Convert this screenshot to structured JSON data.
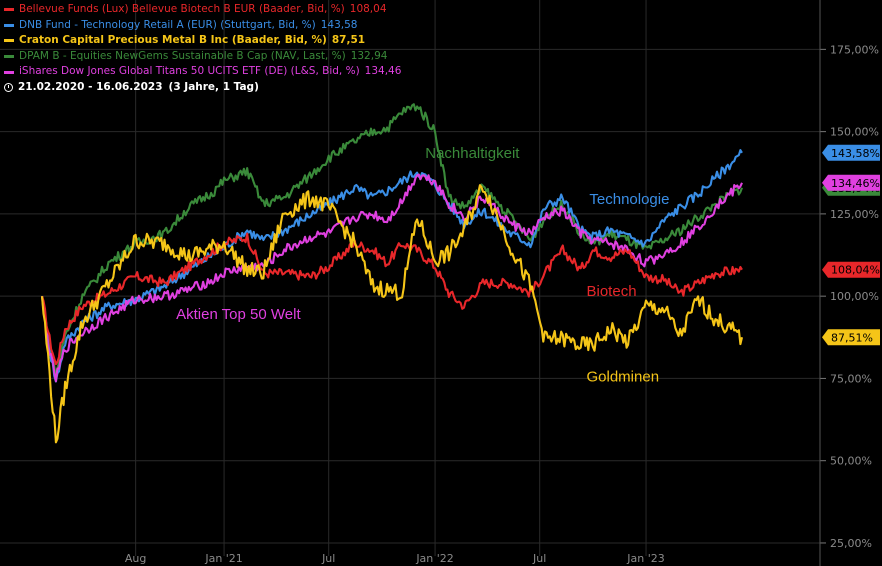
{
  "legend": [
    {
      "label": "Bellevue Funds (Lux) Bellevue Biotech B EUR (Baader, Bid, %)",
      "value": "108,04",
      "color": "#e8272a",
      "bold": false
    },
    {
      "label": "DNB Fund - Technology Retail A (EUR) (Stuttgart, Bid, %)",
      "value": "143,58",
      "color": "#3a8ee6",
      "bold": false
    },
    {
      "label": "Craton Capital Precious Metal B Inc (Baader, Bid, %)",
      "value": "87,51",
      "color": "#f5c518",
      "bold": true
    },
    {
      "label": "DPAM B - Equities NewGems Sustainable B Cap (NAV, Last, %)",
      "value": "132,94",
      "color": "#3a8a3a",
      "bold": false
    },
    {
      "label": "iShares Dow Jones Global Titans 50 UCITS ETF (DE) (L&S, Bid, %)",
      "value": "134,46",
      "color": "#e040e0",
      "bold": false
    }
  ],
  "date_range": "21.02.2020 - 16.06.2023",
  "date_span": "(3 Jahre, 1 Tag)",
  "chart_data": {
    "type": "line",
    "y_ticks": [
      "25,00%",
      "50,00%",
      "75,00%",
      "100,00%",
      "125,00%",
      "150,00%",
      "175,00%"
    ],
    "y_tick_values": [
      25,
      50,
      75,
      100,
      125,
      150,
      175
    ],
    "ylim": [
      18,
      190
    ],
    "x_ticks": [
      "Aug",
      "Jan '21",
      "Jul",
      "Jan '22",
      "Jul",
      "Jan '23"
    ],
    "x_tick_dates": [
      "2020-08-01",
      "2021-01-01",
      "2021-07-01",
      "2022-01-01",
      "2022-07-01",
      "2023-01-01"
    ],
    "x_range": [
      "2020-02-21",
      "2023-06-16"
    ],
    "grid": true,
    "annotations": [
      {
        "text": "Nachhaltigkeit",
        "color": "#3a8a3a"
      },
      {
        "text": "Technologie",
        "color": "#3a8ee6"
      },
      {
        "text": "Biotech",
        "color": "#e8272a"
      },
      {
        "text": "Aktien Top 50 Welt",
        "color": "#e040e0"
      },
      {
        "text": "Goldminen",
        "color": "#f5c518"
      }
    ],
    "series": [
      {
        "name": "Bellevue Funds (Lux) Bellevue Biotech B EUR",
        "color": "#e8272a",
        "last": "108,04",
        "x": [
          "2020-02-21",
          "2020-03-05",
          "2020-03-16",
          "2020-04-01",
          "2020-05-01",
          "2020-06-15",
          "2020-08-01",
          "2020-09-20",
          "2020-11-01",
          "2020-12-15",
          "2021-01-01",
          "2021-02-10",
          "2021-03-10",
          "2021-04-15",
          "2021-06-01",
          "2021-07-01",
          "2021-08-15",
          "2021-09-15",
          "2021-10-10",
          "2021-11-05",
          "2021-12-01",
          "2022-01-01",
          "2022-01-25",
          "2022-02-20",
          "2022-03-25",
          "2022-05-12",
          "2022-06-15",
          "2022-07-10",
          "2022-08-10",
          "2022-09-10",
          "2022-10-01",
          "2022-11-01",
          "2022-12-01",
          "2023-01-01",
          "2023-02-01",
          "2023-03-01",
          "2023-04-01",
          "2023-05-01",
          "2023-06-16"
        ],
        "y": [
          100,
          87,
          79,
          90,
          97,
          101,
          106,
          104,
          109,
          114,
          116,
          118,
          107,
          107,
          106,
          109,
          116,
          114,
          110,
          116,
          114,
          109,
          101,
          97,
          104,
          104,
          101,
          107,
          114,
          108,
          114,
          112,
          114,
          106,
          105,
          101,
          104,
          107,
          108.04
        ]
      },
      {
        "name": "DNB Fund - Technology Retail A (EUR)",
        "color": "#3a8ee6",
        "last": "143,58",
        "x": [
          "2020-02-21",
          "2020-03-05",
          "2020-03-16",
          "2020-04-01",
          "2020-05-01",
          "2020-06-15",
          "2020-08-01",
          "2020-09-20",
          "2020-11-01",
          "2020-12-15",
          "2021-01-01",
          "2021-02-10",
          "2021-03-10",
          "2021-04-15",
          "2021-06-01",
          "2021-07-01",
          "2021-08-15",
          "2021-09-15",
          "2021-10-10",
          "2021-11-05",
          "2021-12-01",
          "2022-01-01",
          "2022-01-25",
          "2022-02-20",
          "2022-03-25",
          "2022-05-12",
          "2022-06-15",
          "2022-07-10",
          "2022-08-10",
          "2022-09-10",
          "2022-10-01",
          "2022-11-01",
          "2022-12-01",
          "2023-01-01",
          "2023-02-01",
          "2023-03-01",
          "2023-04-01",
          "2023-05-01",
          "2023-06-16"
        ],
        "y": [
          100,
          84,
          74,
          86,
          92,
          97,
          99,
          103,
          108,
          113,
          115,
          120,
          117,
          120,
          125,
          128,
          133,
          130,
          132,
          135,
          138,
          134,
          128,
          122,
          126,
          119,
          116,
          127,
          130,
          120,
          118,
          120,
          118,
          116,
          123,
          127,
          131,
          136,
          143.58
        ]
      },
      {
        "name": "Craton Capital Precious Metal B Inc",
        "color": "#f5c518",
        "last": "87,51",
        "x": [
          "2020-02-21",
          "2020-03-05",
          "2020-03-16",
          "2020-04-01",
          "2020-05-01",
          "2020-06-15",
          "2020-08-01",
          "2020-09-20",
          "2020-11-01",
          "2020-12-15",
          "2021-01-01",
          "2021-02-10",
          "2021-03-10",
          "2021-04-15",
          "2021-06-01",
          "2021-07-01",
          "2021-08-15",
          "2021-09-15",
          "2021-10-10",
          "2021-11-05",
          "2021-12-01",
          "2022-01-01",
          "2022-01-25",
          "2022-02-20",
          "2022-03-25",
          "2022-05-12",
          "2022-06-15",
          "2022-07-10",
          "2022-08-10",
          "2022-09-10",
          "2022-10-01",
          "2022-11-01",
          "2022-12-01",
          "2023-01-01",
          "2023-02-01",
          "2023-03-01",
          "2023-04-01",
          "2023-05-01",
          "2023-06-16"
        ],
        "y": [
          100,
          77,
          56,
          72,
          92,
          104,
          117,
          116,
          112,
          115,
          116,
          108,
          107,
          125,
          130,
          127,
          116,
          103,
          102,
          101,
          124,
          111,
          113,
          120,
          134,
          115,
          103,
          87,
          87,
          85,
          85,
          90,
          86,
          97,
          96,
          88,
          99,
          93,
          87.51
        ]
      },
      {
        "name": "DPAM B - Equities NewGems Sustainable B Cap",
        "color": "#3a8a3a",
        "last": "132,94",
        "x": [
          "2020-02-21",
          "2020-03-05",
          "2020-03-16",
          "2020-04-01",
          "2020-05-01",
          "2020-06-15",
          "2020-08-01",
          "2020-09-20",
          "2020-11-01",
          "2020-12-15",
          "2021-01-01",
          "2021-02-10",
          "2021-03-10",
          "2021-04-15",
          "2021-06-01",
          "2021-07-01",
          "2021-08-15",
          "2021-09-15",
          "2021-10-10",
          "2021-11-05",
          "2021-12-01",
          "2022-01-01",
          "2022-01-25",
          "2022-02-20",
          "2022-03-25",
          "2022-05-12",
          "2022-06-15",
          "2022-07-10",
          "2022-08-10",
          "2022-09-10",
          "2022-10-01",
          "2022-11-01",
          "2022-12-01",
          "2023-01-01",
          "2023-02-01",
          "2023-03-01",
          "2023-04-01",
          "2023-05-01",
          "2023-06-16"
        ],
        "y": [
          100,
          85,
          76,
          88,
          100,
          110,
          116,
          119,
          127,
          132,
          135,
          138,
          128,
          130,
          137,
          142,
          147,
          150,
          151,
          156,
          158,
          150,
          130,
          127,
          133,
          124,
          117,
          124,
          128,
          119,
          116,
          119,
          117,
          114,
          117,
          120,
          124,
          128,
          132.94
        ]
      },
      {
        "name": "iShares Dow Jones Global Titans 50 UCITS ETF (DE)",
        "color": "#e040e0",
        "last": "134,46",
        "x": [
          "2020-02-21",
          "2020-03-05",
          "2020-03-16",
          "2020-04-01",
          "2020-05-01",
          "2020-06-15",
          "2020-08-01",
          "2020-09-20",
          "2020-11-01",
          "2020-12-15",
          "2021-01-01",
          "2021-02-10",
          "2021-03-10",
          "2021-04-15",
          "2021-06-01",
          "2021-07-01",
          "2021-08-15",
          "2021-09-15",
          "2021-10-10",
          "2021-11-05",
          "2021-12-01",
          "2022-01-01",
          "2022-01-25",
          "2022-02-20",
          "2022-03-25",
          "2022-05-12",
          "2022-06-15",
          "2022-07-10",
          "2022-08-10",
          "2022-09-10",
          "2022-10-01",
          "2022-11-01",
          "2022-12-01",
          "2023-01-01",
          "2023-02-01",
          "2023-03-01",
          "2023-04-01",
          "2023-05-01",
          "2023-06-16"
        ],
        "y": [
          100,
          83,
          75,
          84,
          89,
          94,
          99,
          100,
          102,
          105,
          107,
          109,
          109,
          114,
          118,
          119,
          124,
          125,
          123,
          129,
          137,
          135,
          128,
          124,
          130,
          122,
          119,
          124,
          126,
          119,
          117,
          116,
          114,
          110,
          113,
          116,
          121,
          127,
          134.46
        ]
      }
    ]
  }
}
